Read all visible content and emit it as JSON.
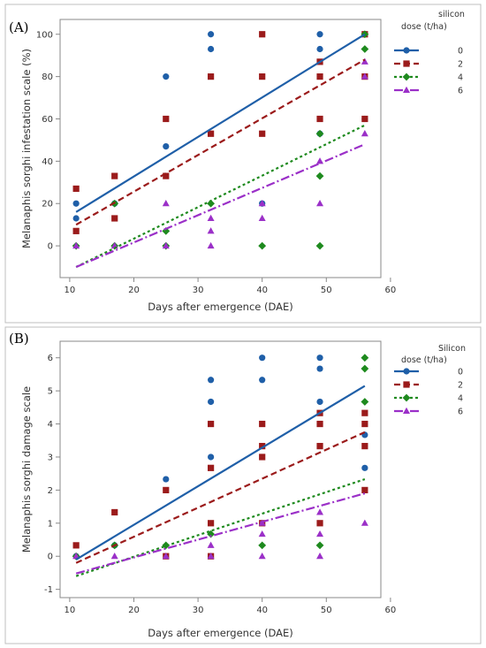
{
  "chart_data": [
    {
      "type": "scatter",
      "panel_label": "(A)",
      "xlabel": "Days after emergence (DAE)",
      "ylabel": "Melanaphis sorghi infestation scale (%)",
      "xlim": [
        8.5,
        58.5
      ],
      "ylim": [
        -15,
        107
      ],
      "xticks": [
        10,
        20,
        30,
        40,
        50,
        60
      ],
      "yticks": [
        0,
        20,
        40,
        60,
        80,
        100
      ],
      "grid": false,
      "legend": {
        "title_line1": "silicon",
        "title_line2": "dose (t/ha)",
        "placement": "right"
      },
      "series": [
        {
          "name": "0",
          "color": "#1f5fa8",
          "marker": "circle",
          "line": "solid",
          "fit": {
            "x": [
              11,
              56
            ],
            "y": [
              16,
              100
            ]
          },
          "points": [
            [
              11,
              20
            ],
            [
              11,
              13
            ],
            [
              17,
              20
            ],
            [
              25,
              80
            ],
            [
              25,
              47
            ],
            [
              32,
              100
            ],
            [
              32,
              93
            ],
            [
              40,
              20
            ],
            [
              49,
              100
            ],
            [
              49,
              93
            ],
            [
              49,
              53
            ],
            [
              56,
              100
            ],
            [
              56,
              60
            ]
          ]
        },
        {
          "name": "2",
          "color": "#9b1b1b",
          "marker": "square",
          "line": "dash",
          "fit": {
            "x": [
              11,
              56
            ],
            "y": [
              10,
              88
            ]
          },
          "points": [
            [
              11,
              27
            ],
            [
              11,
              7
            ],
            [
              17,
              33
            ],
            [
              17,
              13
            ],
            [
              25,
              60
            ],
            [
              25,
              33
            ],
            [
              32,
              80
            ],
            [
              32,
              53
            ],
            [
              40,
              100
            ],
            [
              40,
              80
            ],
            [
              40,
              53
            ],
            [
              49,
              87
            ],
            [
              49,
              80
            ],
            [
              49,
              60
            ],
            [
              56,
              100
            ],
            [
              56,
              80
            ],
            [
              56,
              60
            ]
          ]
        },
        {
          "name": "4",
          "color": "#1e8a1e",
          "marker": "diamond",
          "line": "dot",
          "fit": {
            "x": [
              11,
              56
            ],
            "y": [
              -10,
              57
            ]
          },
          "points": [
            [
              11,
              0
            ],
            [
              17,
              20
            ],
            [
              17,
              0
            ],
            [
              25,
              7
            ],
            [
              25,
              0
            ],
            [
              32,
              20
            ],
            [
              40,
              0
            ],
            [
              49,
              53
            ],
            [
              49,
              33
            ],
            [
              49,
              0
            ],
            [
              56,
              100
            ],
            [
              56,
              93
            ]
          ]
        },
        {
          "name": "6",
          "color": "#9b30c8",
          "marker": "triangle",
          "line": "dashdot",
          "fit": {
            "x": [
              11,
              56
            ],
            "y": [
              -10,
              48
            ]
          },
          "points": [
            [
              11,
              0
            ],
            [
              17,
              0
            ],
            [
              25,
              20
            ],
            [
              25,
              0
            ],
            [
              32,
              13
            ],
            [
              32,
              7
            ],
            [
              32,
              0
            ],
            [
              40,
              20
            ],
            [
              40,
              13
            ],
            [
              49,
              40
            ],
            [
              49,
              20
            ],
            [
              56,
              87
            ],
            [
              56,
              80
            ],
            [
              56,
              53
            ]
          ]
        }
      ]
    },
    {
      "type": "scatter",
      "panel_label": "(B)",
      "xlabel": "Days after emergence (DAE)",
      "ylabel": "Melanaphis sorghi damage scale",
      "xlim": [
        8.5,
        58.5
      ],
      "ylim": [
        -1.25,
        6.5
      ],
      "xticks": [
        10,
        20,
        30,
        40,
        50,
        60
      ],
      "yticks": [
        -1,
        0,
        1,
        2,
        3,
        4,
        5,
        6
      ],
      "grid": false,
      "legend": {
        "title_line1": "Silicon",
        "title_line2": "dose (t/ha)",
        "placement": "right"
      },
      "series": [
        {
          "name": "0",
          "color": "#1f5fa8",
          "marker": "circle",
          "line": "solid",
          "fit": {
            "x": [
              11,
              56
            ],
            "y": [
              -0.1,
              5.15
            ]
          },
          "points": [
            [
              11,
              0
            ],
            [
              17,
              0.33
            ],
            [
              25,
              2.33
            ],
            [
              32,
              5.33
            ],
            [
              32,
              4.67
            ],
            [
              32,
              3
            ],
            [
              40,
              6
            ],
            [
              40,
              5.33
            ],
            [
              49,
              6
            ],
            [
              49,
              5.67
            ],
            [
              49,
              4.67
            ],
            [
              56,
              3.67
            ],
            [
              56,
              2.67
            ]
          ]
        },
        {
          "name": "2",
          "color": "#9b1b1b",
          "marker": "square",
          "line": "dash",
          "fit": {
            "x": [
              11,
              56
            ],
            "y": [
              -0.2,
              3.75
            ]
          },
          "points": [
            [
              11,
              0.33
            ],
            [
              17,
              1.33
            ],
            [
              25,
              2
            ],
            [
              25,
              0
            ],
            [
              32,
              4
            ],
            [
              32,
              2.67
            ],
            [
              32,
              1
            ],
            [
              32,
              0
            ],
            [
              40,
              4
            ],
            [
              40,
              3.33
            ],
            [
              40,
              3
            ],
            [
              40,
              1
            ],
            [
              49,
              4.33
            ],
            [
              49,
              4
            ],
            [
              49,
              3.33
            ],
            [
              49,
              1
            ],
            [
              56,
              4.33
            ],
            [
              56,
              4
            ],
            [
              56,
              3.33
            ],
            [
              56,
              2
            ]
          ]
        },
        {
          "name": "4",
          "color": "#1e8a1e",
          "marker": "diamond",
          "line": "dot",
          "fit": {
            "x": [
              11,
              56
            ],
            "y": [
              -0.6,
              2.33
            ]
          },
          "points": [
            [
              11,
              0
            ],
            [
              17,
              0.33
            ],
            [
              25,
              0.33
            ],
            [
              32,
              0.67
            ],
            [
              40,
              0.33
            ],
            [
              49,
              0.33
            ],
            [
              56,
              6
            ],
            [
              56,
              5.67
            ],
            [
              56,
              4.67
            ]
          ]
        },
        {
          "name": "6",
          "color": "#9b30c8",
          "marker": "triangle",
          "line": "dashdot",
          "fit": {
            "x": [
              11,
              56
            ],
            "y": [
              -0.52,
              1.9
            ]
          },
          "points": [
            [
              11,
              0
            ],
            [
              17,
              0
            ],
            [
              25,
              0
            ],
            [
              32,
              0.33
            ],
            [
              32,
              0
            ],
            [
              40,
              1
            ],
            [
              40,
              0.67
            ],
            [
              40,
              0
            ],
            [
              49,
              1.33
            ],
            [
              49,
              0.67
            ],
            [
              49,
              0
            ],
            [
              56,
              1
            ]
          ]
        }
      ]
    }
  ]
}
